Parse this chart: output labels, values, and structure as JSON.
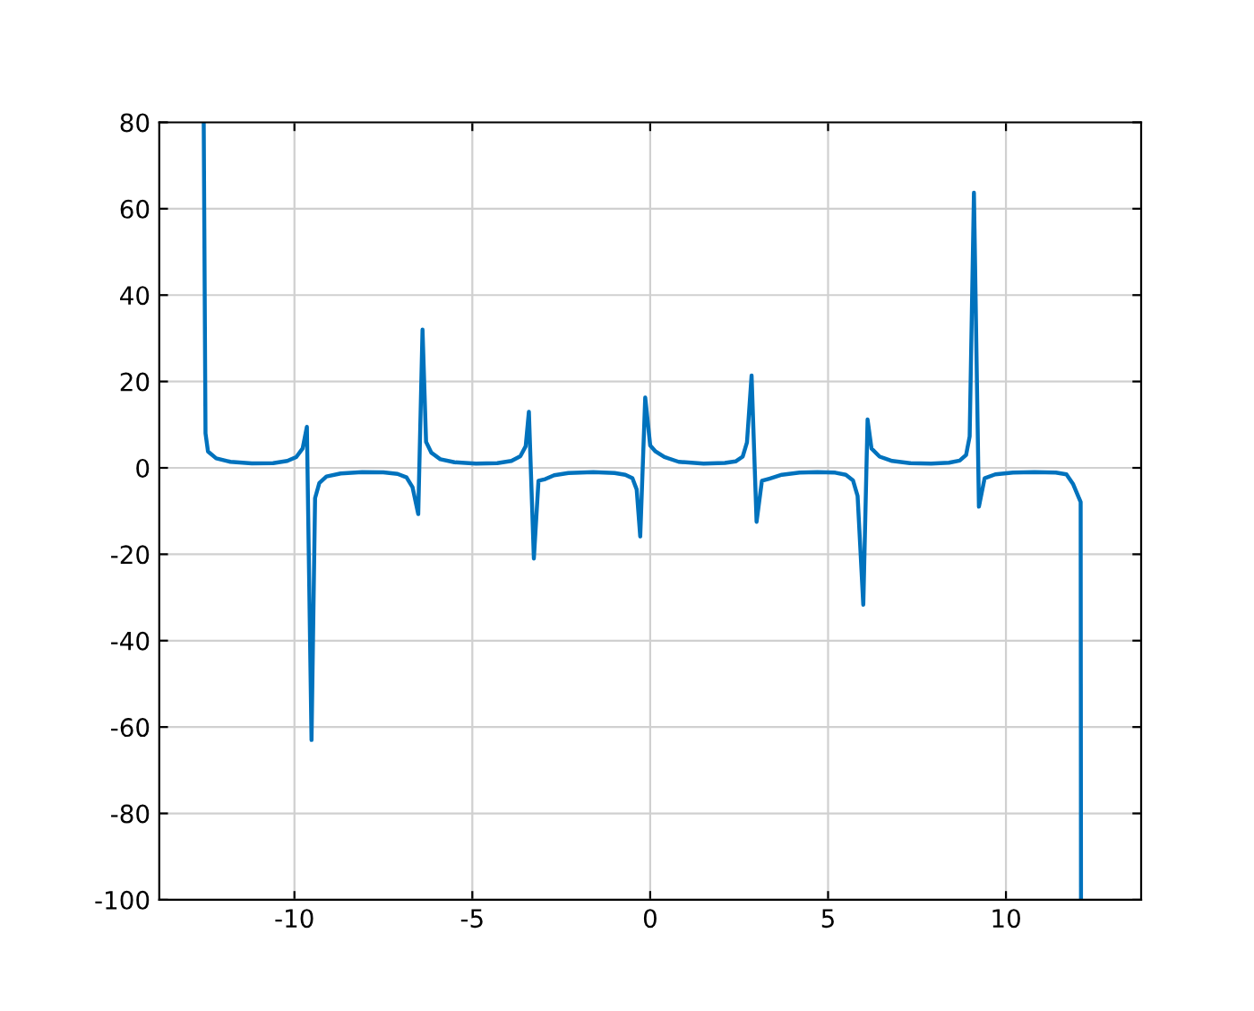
{
  "chart_data": {
    "type": "line",
    "xlim": [
      -13.8,
      13.8
    ],
    "ylim": [
      -100,
      80
    ],
    "xticks": [
      -10,
      -5,
      0,
      5,
      10
    ],
    "yticks": [
      -100,
      -80,
      -60,
      -40,
      -20,
      0,
      20,
      40,
      60,
      80
    ],
    "grid": true,
    "legend": false,
    "marker": "none",
    "line_style": "solid",
    "series": [
      {
        "color": "#0072bd",
        "x": [
          -12.55,
          -12.5,
          -12.43,
          -12.2,
          -11.8,
          -11.2,
          -10.6,
          -10.2,
          -9.95,
          -9.77,
          -9.65,
          -9.52,
          -9.42,
          -9.3,
          -9.1,
          -8.7,
          -8.1,
          -7.5,
          -7.1,
          -6.85,
          -6.68,
          -6.52,
          -6.4,
          -6.3,
          -6.15,
          -5.9,
          -5.5,
          -4.9,
          -4.3,
          -3.9,
          -3.65,
          -3.5,
          -3.41,
          -3.27,
          -3.14,
          -2.95,
          -2.7,
          -2.3,
          -1.6,
          -1.0,
          -0.7,
          -0.5,
          -0.38,
          -0.28,
          -0.14,
          0,
          0.15,
          0.4,
          0.8,
          1.5,
          2.1,
          2.4,
          2.6,
          2.72,
          2.85,
          2.99,
          3.14,
          3.35,
          3.7,
          4.2,
          4.7,
          5.2,
          5.5,
          5.7,
          5.83,
          5.99,
          6.11,
          6.22,
          6.45,
          6.8,
          7.3,
          7.9,
          8.4,
          8.7,
          8.88,
          8.98,
          9.1,
          9.24,
          9.4,
          9.7,
          10.2,
          10.8,
          11.4,
          11.7,
          11.89,
          12.1,
          12.11
        ],
        "values": [
          80,
          8,
          3.8,
          2.2,
          1.4,
          1.05,
          1.1,
          1.6,
          2.5,
          4.5,
          9.5,
          -63,
          -7,
          -3.5,
          -2,
          -1.3,
          -1,
          -1.05,
          -1.4,
          -2.2,
          -4.5,
          -10.7,
          32,
          6,
          3.5,
          2,
          1.3,
          1,
          1.1,
          1.6,
          2.7,
          5,
          13,
          -21,
          -3,
          -2.6,
          -1.7,
          -1.2,
          -1,
          -1.2,
          -1.6,
          -2.4,
          -5,
          -15.9,
          16.3,
          5.2,
          3.8,
          2.5,
          1.4,
          1,
          1.15,
          1.5,
          2.6,
          5.9,
          21.4,
          -12.5,
          -3,
          -2.5,
          -1.6,
          -1.1,
          -1,
          -1.1,
          -1.6,
          -2.9,
          -6.5,
          -31.7,
          11.2,
          4.5,
          2.6,
          1.6,
          1.1,
          1,
          1.2,
          1.7,
          3,
          7.3,
          63.7,
          -9,
          -2.4,
          -1.5,
          -1.1,
          -1,
          -1.1,
          -1.5,
          -3.8,
          -7.9,
          -100
        ]
      }
    ]
  }
}
